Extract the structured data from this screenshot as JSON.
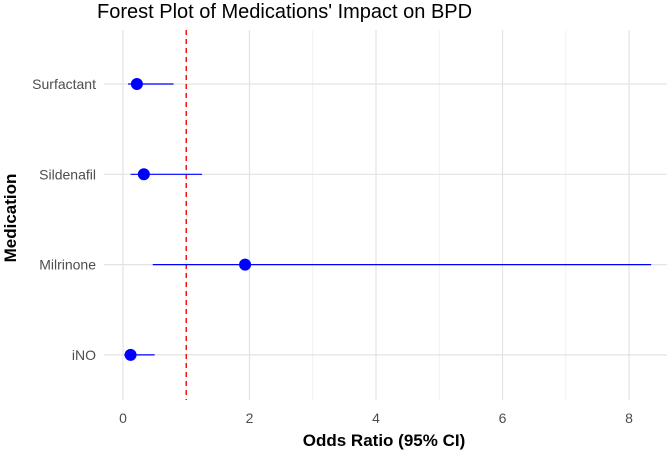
{
  "chart_data": {
    "type": "scatter",
    "subtype": "forest-plot",
    "title": "Forest Plot of Medications' Impact on BPD",
    "xlabel": "Odds Ratio (95% CI)",
    "ylabel": "Medication",
    "categories": [
      "Surfactant",
      "Sildenafil",
      "Milrinone",
      "iNO"
    ],
    "estimates": [
      0.22,
      0.33,
      1.93,
      0.12
    ],
    "ci_lower": [
      0.08,
      0.12,
      0.47,
      0.02
    ],
    "ci_upper": [
      0.8,
      1.25,
      8.35,
      0.5
    ],
    "xlim": [
      -0.3,
      8.6
    ],
    "xticks": [
      0,
      2,
      4,
      6,
      8
    ],
    "x_minor_ticks": [
      1,
      3,
      5,
      7
    ],
    "reference_line": {
      "x": 1,
      "style": "dashed",
      "color": "#ff0000"
    },
    "point_color": "#0000ff",
    "ci_color": "#0000ff",
    "grid": true,
    "legend": "none"
  }
}
